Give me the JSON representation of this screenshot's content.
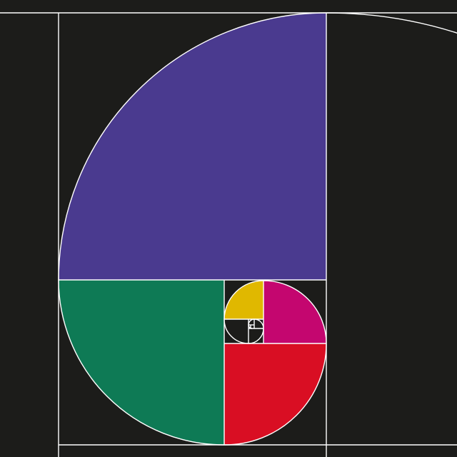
{
  "diagram": {
    "kind": "golden-spiral",
    "colors": {
      "background": "#1c1c1a",
      "line": "#ffffff",
      "purple": "#4a3a8f",
      "green": "#0e7a55",
      "red": "#d90e23",
      "magenta": "#c4066f",
      "yellow": "#e0b800"
    }
  }
}
